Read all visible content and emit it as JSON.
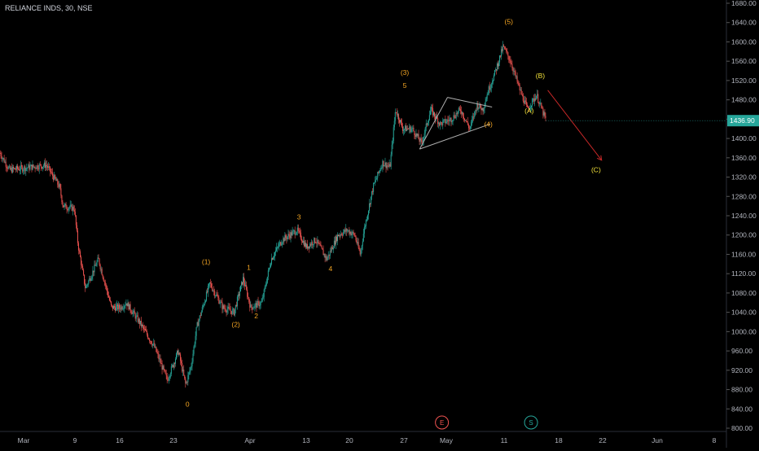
{
  "header": {
    "symbol_label": "RELIANCE INDS, 30, NSE"
  },
  "colors": {
    "background": "#000000",
    "up_candle": "#26a69a",
    "down_candle": "#ef5350",
    "wave_label": "#f5a623",
    "abc_label": "#f3e33a",
    "projection_arrow": "#c62828",
    "triangle_line": "#b0b0b0",
    "axis_text": "#b2b5be",
    "last_price_badge": "#26a69a",
    "event_e": "#ef5350",
    "event_s": "#26a69a"
  },
  "chart_data": {
    "type": "candlestick",
    "instrument": "RELIANCE INDS",
    "interval": "30",
    "exchange": "NSE",
    "last_price": "1436.90",
    "ylim": [
      800,
      1680
    ],
    "y_ticks": [
      "800.00",
      "840.00",
      "880.00",
      "920.00",
      "960.00",
      "1000.00",
      "1040.00",
      "1080.00",
      "1120.00",
      "1160.00",
      "1200.00",
      "1240.00",
      "1280.00",
      "1320.00",
      "1360.00",
      "1400.00",
      "1440.00",
      "1480.00",
      "1520.00",
      "1560.00",
      "1600.00",
      "1640.00",
      "1680.00"
    ],
    "x_ticks": [
      "Mar",
      "9",
      "16",
      "23",
      "Apr",
      "13",
      "20",
      "27",
      "May",
      "11",
      "18",
      "22",
      "Jun",
      "8"
    ],
    "price_path_anchors": [
      {
        "t": 0.0,
        "price": 1370
      },
      {
        "t": 0.5,
        "price": 1335
      },
      {
        "t": 2.5,
        "price": 1345
      },
      {
        "t": 3.2,
        "price": 1300
      },
      {
        "t": 3.4,
        "price": 1260
      },
      {
        "t": 4.0,
        "price": 1255
      },
      {
        "t": 4.2,
        "price": 1180
      },
      {
        "t": 4.6,
        "price": 1090
      },
      {
        "t": 5.3,
        "price": 1150
      },
      {
        "t": 6.0,
        "price": 1050
      },
      {
        "t": 6.5,
        "price": 1050
      },
      {
        "t": 6.8,
        "price": 1060
      },
      {
        "t": 7.5,
        "price": 1020
      },
      {
        "t": 8.3,
        "price": 970
      },
      {
        "t": 9.0,
        "price": 900
      },
      {
        "t": 9.6,
        "price": 960
      },
      {
        "t": 10.0,
        "price": 890
      },
      {
        "t": 10.3,
        "price": 930
      },
      {
        "t": 10.6,
        "price": 1010
      },
      {
        "t": 11.3,
        "price": 1100
      },
      {
        "t": 12.0,
        "price": 1050
      },
      {
        "t": 12.6,
        "price": 1040
      },
      {
        "t": 13.1,
        "price": 1110
      },
      {
        "t": 13.5,
        "price": 1050
      },
      {
        "t": 14.1,
        "price": 1060
      },
      {
        "t": 14.6,
        "price": 1150
      },
      {
        "t": 15.2,
        "price": 1190
      },
      {
        "t": 16.0,
        "price": 1210
      },
      {
        "t": 16.5,
        "price": 1175
      },
      {
        "t": 17.0,
        "price": 1190
      },
      {
        "t": 17.6,
        "price": 1150
      },
      {
        "t": 18.2,
        "price": 1200
      },
      {
        "t": 18.7,
        "price": 1210
      },
      {
        "t": 19.1,
        "price": 1200
      },
      {
        "t": 19.4,
        "price": 1160
      },
      {
        "t": 19.6,
        "price": 1210
      },
      {
        "t": 20.1,
        "price": 1300
      },
      {
        "t": 20.6,
        "price": 1350
      },
      {
        "t": 21.0,
        "price": 1340
      },
      {
        "t": 21.3,
        "price": 1460
      },
      {
        "t": 21.7,
        "price": 1420
      },
      {
        "t": 22.2,
        "price": 1420
      },
      {
        "t": 22.7,
        "price": 1390
      },
      {
        "t": 23.2,
        "price": 1460
      },
      {
        "t": 23.7,
        "price": 1430
      },
      {
        "t": 24.3,
        "price": 1440
      },
      {
        "t": 24.8,
        "price": 1460
      },
      {
        "t": 25.3,
        "price": 1420
      },
      {
        "t": 25.7,
        "price": 1470
      },
      {
        "t": 26.0,
        "price": 1460
      },
      {
        "t": 26.3,
        "price": 1500
      },
      {
        "t": 26.6,
        "price": 1530
      },
      {
        "t": 27.1,
        "price": 1590
      },
      {
        "t": 27.5,
        "price": 1560
      },
      {
        "t": 28.0,
        "price": 1500
      },
      {
        "t": 28.4,
        "price": 1460
      },
      {
        "t": 28.9,
        "price": 1490
      },
      {
        "t": 29.4,
        "price": 1437
      }
    ],
    "wave_labels": [
      {
        "text": "0",
        "t": 10.1,
        "price": 845
      },
      {
        "text": "(1)",
        "t": 11.1,
        "price": 1140
      },
      {
        "text": "(2)",
        "t": 12.7,
        "price": 1010
      },
      {
        "text": "1",
        "t": 13.4,
        "price": 1128
      },
      {
        "text": "2",
        "t": 13.8,
        "price": 1028
      },
      {
        "text": "3",
        "t": 16.1,
        "price": 1232
      },
      {
        "text": "4",
        "t": 17.8,
        "price": 1125
      },
      {
        "text": "(3)",
        "t": 21.8,
        "price": 1532
      },
      {
        "text": "5",
        "t": 21.8,
        "price": 1505
      },
      {
        "text": "(4)",
        "t": 26.3,
        "price": 1425
      },
      {
        "text": "(5)",
        "t": 27.4,
        "price": 1637
      },
      {
        "text": "(A)",
        "t": 28.5,
        "price": 1452
      },
      {
        "text": "(B)",
        "t": 29.1,
        "price": 1525
      },
      {
        "text": "(C)",
        "t": 32.1,
        "price": 1330
      }
    ],
    "triangle": [
      {
        "t": 22.6,
        "price": 1378
      },
      {
        "t": 24.1,
        "price": 1485
      },
      {
        "t": 26.5,
        "price": 1465
      },
      {
        "t": 26.4,
        "price": 1430
      }
    ],
    "projection": {
      "from": {
        "t": 29.5,
        "price": 1500
      },
      "to": {
        "t": 32.4,
        "price": 1355
      }
    },
    "event_markers": [
      {
        "text": "E",
        "t": 23.8
      },
      {
        "text": "S",
        "t": 28.6
      }
    ]
  }
}
